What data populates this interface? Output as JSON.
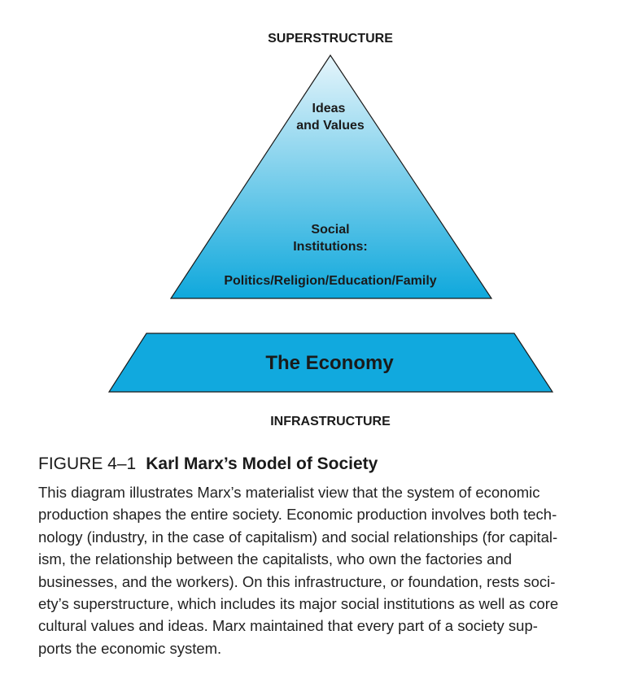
{
  "diagram": {
    "top_label": "SUPERSTRUCTURE",
    "bottom_label": "INFRASTRUCTURE",
    "pyramid": {
      "line1": "Ideas",
      "line2": "and Values",
      "line3": "Social",
      "line4": "Institutions:",
      "line5": "Politics/Religion/Education/Family"
    },
    "base_label": "The Economy",
    "colors": {
      "pyramid_top": "#e6f5fb",
      "pyramid_bottom": "#0fa8dc",
      "base_fill": "#11a9de",
      "outline": "#1a1a1a"
    }
  },
  "caption": {
    "figure_number": "FIGURE 4–1",
    "title": "Karl Marx’s Model of Society",
    "lines": [
      "This diagram illustrates Marx’s materialist view that the system of economic",
      "production shapes the entire society. Economic production involves both tech-",
      "nology (industry, in the case of capitalism) and social relationships (for capital-",
      "ism, the relationship between the capitalists, who own the factories and",
      "businesses, and the workers). On this infrastructure, or foundation, rests soci-",
      "ety’s superstructure, which includes its major social institutions as well as core",
      "cultural values and ideas. Marx maintained that every part of a society sup-",
      "ports the economic system."
    ]
  }
}
